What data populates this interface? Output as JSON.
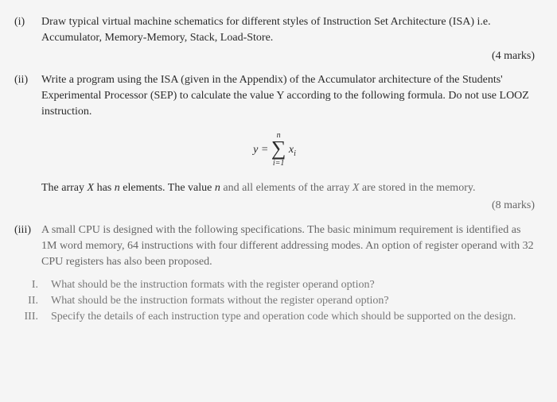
{
  "q1": {
    "marker": "(i)",
    "text": "Draw typical virtual machine schematics for different styles of Instruction Set Architecture (ISA) i.e. Accumulator, Memory-Memory, Stack, Load-Store.",
    "marks": "(4 marks)"
  },
  "q2": {
    "marker": "(ii)",
    "text": "Write a program using the ISA (given in the Appendix) of the Accumulator architecture of the Students' Experimental Processor (SEP) to calculate the value Y according to the following formula. Do not use LOOZ instruction.",
    "formula": {
      "lhs": "y = ",
      "top": "n",
      "bottom": "i=1",
      "term_main": "x",
      "term_sub": "i"
    },
    "note_pre": "The array ",
    "note_x": "X",
    "note_mid1": " has ",
    "note_n": "n",
    "note_mid2": " elements. The value ",
    "note_n2": "n",
    "note_mid3": " and all elements of the array ",
    "note_x2": "X",
    "note_end": " are stored in the memory.",
    "marks": "(8 marks)"
  },
  "q3": {
    "marker": "(iii)",
    "text": "A small CPU is designed with the following specifications. The basic minimum requirement is identified as 1M word memory, 64 instructions with four different addressing modes. An option of register operand with 32 CPU registers has also been proposed.",
    "sub": {
      "a": {
        "marker": "I.",
        "text": "What should be the instruction formats with the register operand option?"
      },
      "b": {
        "marker": "II.",
        "text": "What should be the instruction formats without the register operand option?"
      },
      "c": {
        "marker": "III.",
        "text": "Specify the details of each instruction type and operation code which should be supported on the design."
      }
    }
  }
}
